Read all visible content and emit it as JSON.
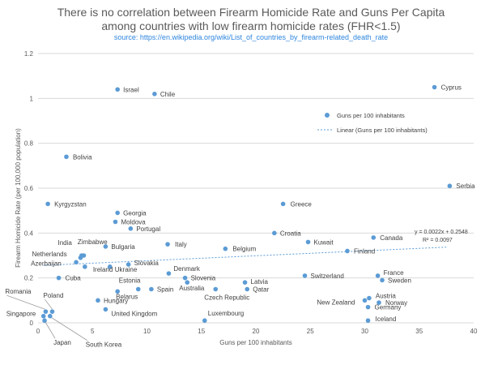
{
  "chart_data": {
    "type": "scatter",
    "title_line1": "There is no correlation between Firearm Homicide Rate and Guns Per Capita",
    "title_line2": "among countries with low firearm homicide rates (FHR<1.5)",
    "subtitle": "source: https://en.wikipedia.org/wiki/List_of_countries_by_firearm-related_death_rate",
    "xlabel": "Guns per 100 inhabitants",
    "ylabel": "Firearm Homicide Rate (per 100,000 population)",
    "xlim": [
      0,
      40
    ],
    "ylim": [
      0,
      1.2
    ],
    "x_ticks": [
      "0",
      "5",
      "10",
      "15",
      "20",
      "25",
      "30",
      "35",
      "40"
    ],
    "y_ticks": [
      "0",
      "0.2",
      "0.4",
      "0.6",
      "0.8",
      "1",
      "1.2"
    ],
    "grid": true,
    "legend_position": "top-right",
    "series": [
      {
        "name": "Guns per 100 inhabitants",
        "color": "#5b9bd5",
        "points": [
          {
            "label": "Israel",
            "x": 7.3,
            "y": 1.04
          },
          {
            "label": "Chile",
            "x": 10.7,
            "y": 1.02
          },
          {
            "label": "Cyprus",
            "x": 36.4,
            "y": 1.05
          },
          {
            "label": "Bolivia",
            "x": 2.6,
            "y": 0.74
          },
          {
            "label": "Kyrgyzstan",
            "x": 0.9,
            "y": 0.53
          },
          {
            "label": "Greece",
            "x": 22.5,
            "y": 0.53
          },
          {
            "label": "Serbia",
            "x": 37.8,
            "y": 0.61
          },
          {
            "label": "Georgia",
            "x": 7.3,
            "y": 0.49
          },
          {
            "label": "Moldova",
            "x": 7.1,
            "y": 0.45
          },
          {
            "label": "Portugal",
            "x": 8.5,
            "y": 0.42
          },
          {
            "label": "Croatia",
            "x": 21.7,
            "y": 0.4
          },
          {
            "label": "Kuwait",
            "x": 24.8,
            "y": 0.36
          },
          {
            "label": "Canada",
            "x": 30.8,
            "y": 0.38
          },
          {
            "label": "Zimbabwe",
            "x": 4.0,
            "y": 0.3
          },
          {
            "label": "India",
            "x": 4.2,
            "y": 0.3
          },
          {
            "label": "Netherlands",
            "x": 3.9,
            "y": 0.29
          },
          {
            "label": "Bulgaria",
            "x": 6.2,
            "y": 0.34
          },
          {
            "label": "Italy",
            "x": 11.9,
            "y": 0.35
          },
          {
            "label": "Belgium",
            "x": 17.2,
            "y": 0.33
          },
          {
            "label": "Finland",
            "x": 28.4,
            "y": 0.32
          },
          {
            "label": "Azerbaijan",
            "x": 3.5,
            "y": 0.27
          },
          {
            "label": "Ireland",
            "x": 4.3,
            "y": 0.25
          },
          {
            "label": "Ukraine",
            "x": 6.6,
            "y": 0.25
          },
          {
            "label": "Slovakia",
            "x": 8.3,
            "y": 0.26
          },
          {
            "label": "Cuba",
            "x": 1.9,
            "y": 0.2
          },
          {
            "label": "Denmark",
            "x": 12.0,
            "y": 0.22
          },
          {
            "label": "Slovenia",
            "x": 13.5,
            "y": 0.2
          },
          {
            "label": "Australia",
            "x": 13.7,
            "y": 0.18
          },
          {
            "label": "Estonia",
            "x": 9.2,
            "y": 0.15
          },
          {
            "label": "Spain",
            "x": 10.4,
            "y": 0.15
          },
          {
            "label": "Belarus",
            "x": 7.3,
            "y": 0.14
          },
          {
            "label": "Hungary",
            "x": 5.5,
            "y": 0.1
          },
          {
            "label": "Latvia",
            "x": 19.0,
            "y": 0.18
          },
          {
            "label": "Czech Republic",
            "x": 16.3,
            "y": 0.15
          },
          {
            "label": "Qatar",
            "x": 19.2,
            "y": 0.15
          },
          {
            "label": "Switzerland",
            "x": 24.5,
            "y": 0.21
          },
          {
            "label": "France",
            "x": 31.2,
            "y": 0.21
          },
          {
            "label": "Sweden",
            "x": 31.6,
            "y": 0.19
          },
          {
            "label": "Austria",
            "x": 30.4,
            "y": 0.11
          },
          {
            "label": "New Zealand",
            "x": 30.0,
            "y": 0.1
          },
          {
            "label": "Norway",
            "x": 31.3,
            "y": 0.09
          },
          {
            "label": "Germany",
            "x": 30.3,
            "y": 0.07
          },
          {
            "label": "Iceland",
            "x": 30.3,
            "y": 0.01
          },
          {
            "label": "Luxembourg",
            "x": 15.3,
            "y": 0.01
          },
          {
            "label": "United Kingdom",
            "x": 6.2,
            "y": 0.06
          },
          {
            "label": "Poland",
            "x": 1.3,
            "y": 0.05
          },
          {
            "label": "Romania",
            "x": 0.7,
            "y": 0.05
          },
          {
            "label": "Singapore",
            "x": 0.5,
            "y": 0.03
          },
          {
            "label": "Japan",
            "x": 0.6,
            "y": 0.01
          },
          {
            "label": "South Korea",
            "x": 1.1,
            "y": 0.03
          }
        ]
      }
    ],
    "trendline": {
      "name": "Linear (Guns per 100 inhabitants)",
      "slope": 0.0022,
      "intercept": 0.2548,
      "equation": "y = 0.0022x + 0.2548",
      "r_squared": "R² = 0.0097",
      "color": "#5b9bd5"
    }
  }
}
